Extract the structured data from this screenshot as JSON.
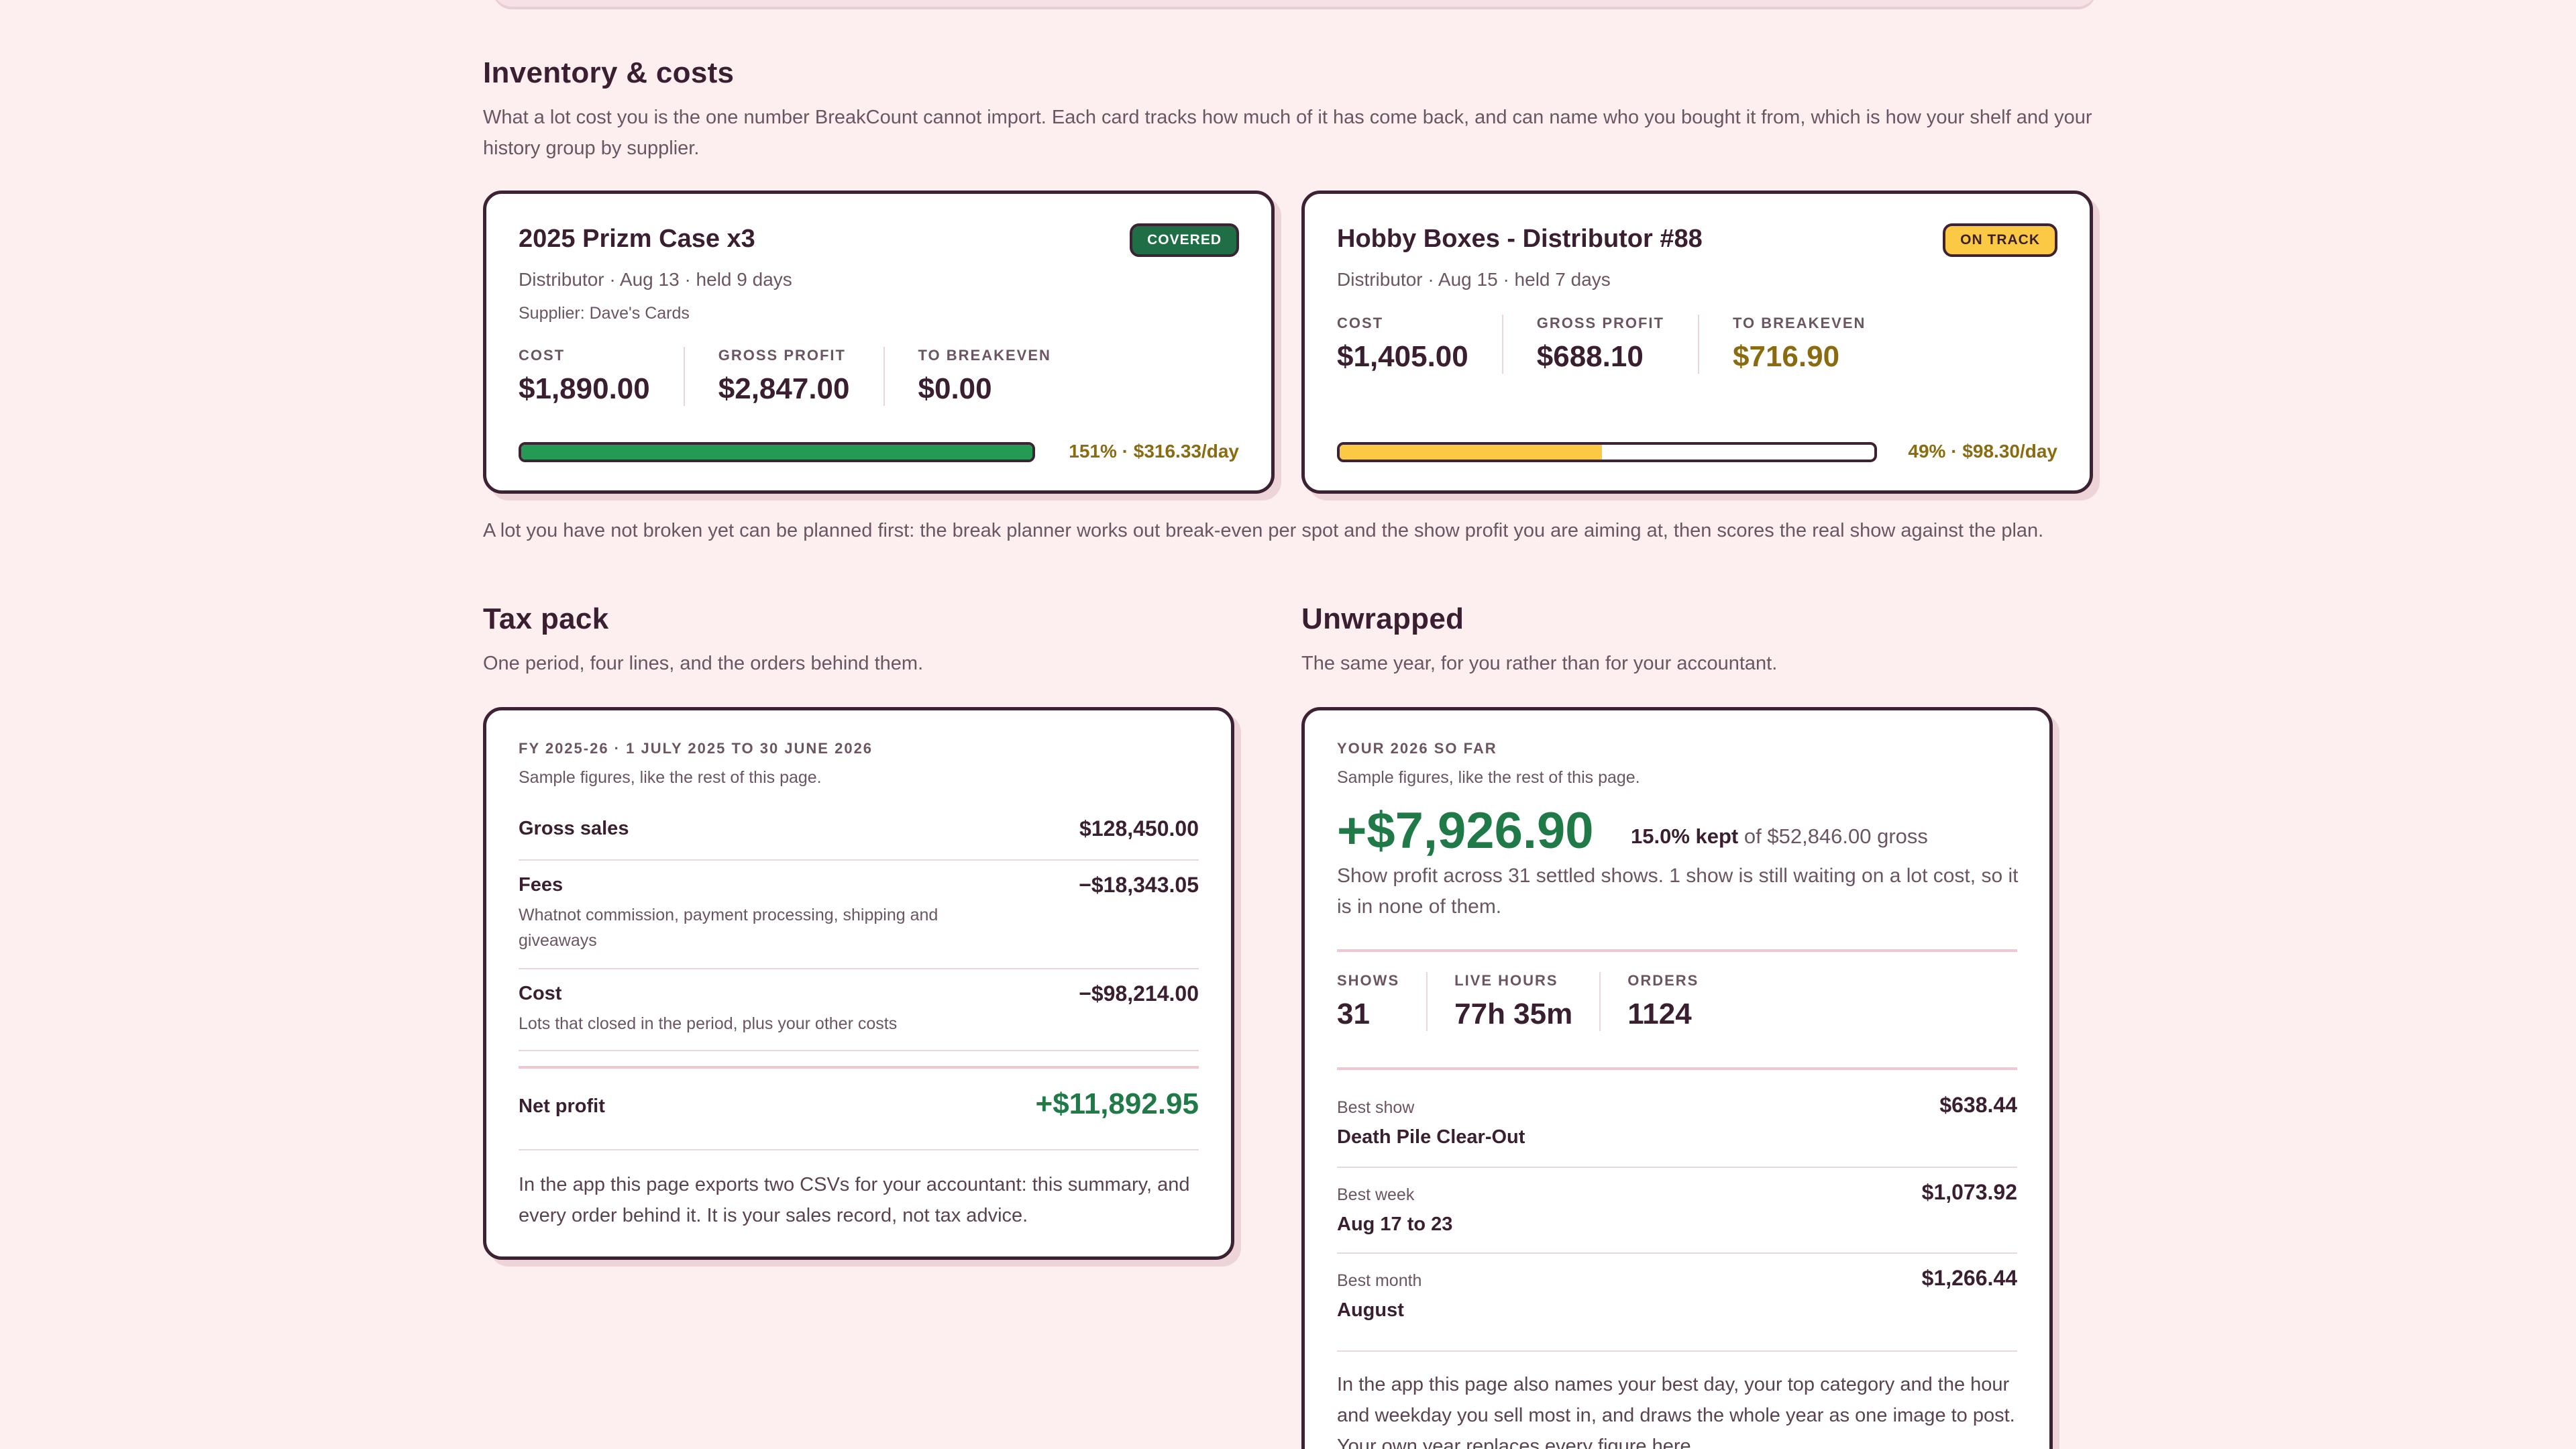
{
  "inventory": {
    "title": "Inventory & costs",
    "intro": "What a lot cost you is the one number BreakCount cannot import. Each card tracks how much of it has come back, and can name who you bought it from, which is how your shelf and your history group by supplier.",
    "cards": [
      {
        "title": "2025 Prizm Case x3",
        "badge": "COVERED",
        "meta": "Distributor · Aug 13 · held 9 days",
        "supplier": "Supplier: Dave's Cards",
        "stats": [
          {
            "label": "COST",
            "value": "$1,890.00"
          },
          {
            "label": "GROSS PROFIT",
            "value": "$2,847.00"
          },
          {
            "label": "TO BREAKEVEN",
            "value": "$0.00"
          }
        ],
        "progress": 1.0,
        "progress_text": "151% · $316.33/day"
      },
      {
        "title": "Hobby Boxes - Distributor #88",
        "badge": "ON TRACK",
        "meta": "Distributor · Aug 15 · held 7 days",
        "stats": [
          {
            "label": "COST",
            "value": "$1,405.00"
          },
          {
            "label": "GROSS PROFIT",
            "value": "$688.10"
          },
          {
            "label": "TO BREAKEVEN",
            "value": "$716.90"
          }
        ],
        "progress": 0.49,
        "progress_text": "49% · $98.30/day"
      }
    ],
    "footnote": "A lot you have not broken yet can be planned first: the break planner works out break-even per spot and the show profit you are aiming at, then scores the real show against the plan."
  },
  "tax": {
    "title": "Tax pack",
    "intro": "One period, four lines, and the orders behind them.",
    "period": "FY 2025-26 · 1 JULY 2025 TO 30 JUNE 2026",
    "sample_note": "Sample figures, like the rest of this page.",
    "rows": [
      {
        "label": "Gross sales",
        "sub": "",
        "value": "$128,450.00"
      },
      {
        "label": "Fees",
        "sub": "Whatnot commission, payment processing, shipping and giveaways",
        "value": "−$18,343.05"
      },
      {
        "label": "Cost",
        "sub": "Lots that closed in the period, plus your other costs",
        "value": "−$98,214.00"
      }
    ],
    "net_label": "Net profit",
    "net_value": "+$11,892.95",
    "footer": "In the app this page exports two CSVs for your accountant: this summary, and every order behind it. It is your sales record, not tax advice."
  },
  "unwrapped": {
    "title": "Unwrapped",
    "intro": "The same year, for you rather than for your accountant.",
    "eyebrow": "YOUR 2026 SO FAR",
    "sample_note": "Sample figures, like the rest of this page.",
    "headline_value": "+$7,926.90",
    "kept_pct": "15.0% kept",
    "kept_rest": "of $52,846.00 gross",
    "summary": "Show profit across 31 settled shows. 1 show is still waiting on a lot cost, so it is in none of them.",
    "stats": [
      {
        "label": "SHOWS",
        "value": "31"
      },
      {
        "label": "LIVE HOURS",
        "value": "77h 35m"
      },
      {
        "label": "ORDERS",
        "value": "1124"
      }
    ],
    "bests": [
      {
        "label": "Best show",
        "name": "Death Pile Clear-Out",
        "value": "$638.44"
      },
      {
        "label": "Best week",
        "name": "Aug 17 to 23",
        "value": "$1,073.92"
      },
      {
        "label": "Best month",
        "name": "August",
        "value": "$1,266.44"
      }
    ],
    "footer": "In the app this page also names your best day, your top category and the hour and weekday you sell most in, and draws the whole year as one image to post. Your own year replaces every figure here."
  }
}
